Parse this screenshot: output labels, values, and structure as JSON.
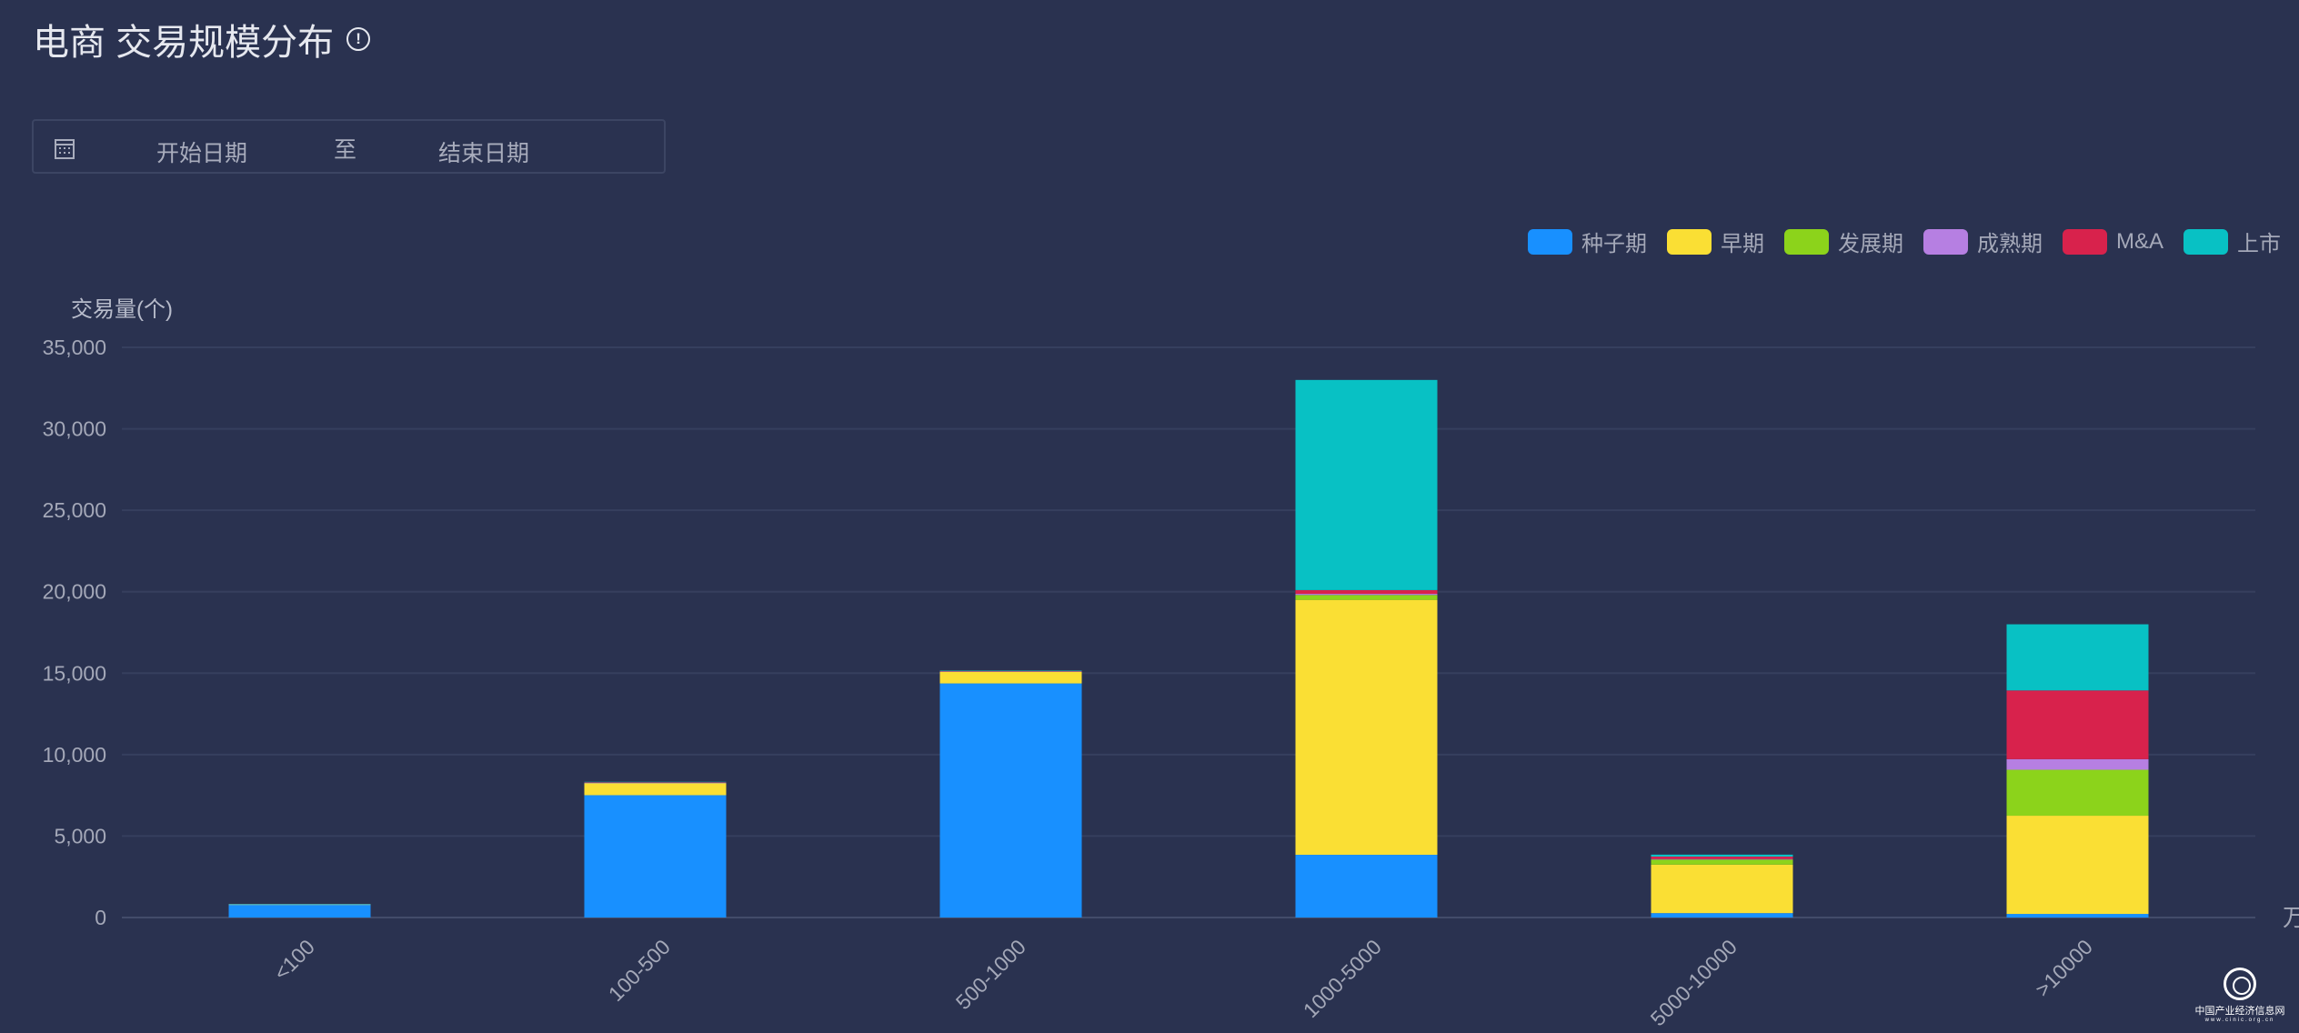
{
  "header": {
    "title": "电商 交易规模分布",
    "info_icon": "info-circle-icon"
  },
  "date_range": {
    "start_placeholder": "开始日期",
    "separator": "至",
    "end_placeholder": "结束日期",
    "icon": "calendar-icon"
  },
  "watermark": {
    "name": "中国产业经济信息网",
    "url": "www.cinic.org.cn"
  },
  "chart_data": {
    "type": "bar",
    "stacked": true,
    "title": "电商 交易规模分布",
    "ylabel": "交易量(个)",
    "xlabel": "万",
    "ylim": [
      0,
      35000
    ],
    "yticks": [
      0,
      5000,
      10000,
      15000,
      20000,
      25000,
      30000,
      35000
    ],
    "ytick_labels": [
      "0",
      "5,000",
      "10,000",
      "15,000",
      "20,000",
      "25,000",
      "30,000",
      "35,000"
    ],
    "grid": true,
    "legend_position": "top-right",
    "categories": [
      "<100",
      "100-500",
      "500-1000",
      "1000-5000",
      "5000-10000",
      ">10000"
    ],
    "series": [
      {
        "name": "种子期",
        "color": "#1890ff",
        "values": [
          790,
          7510,
          14370,
          3850,
          270,
          220
        ]
      },
      {
        "name": "早期",
        "color": "#fadf34",
        "values": [
          10,
          740,
          720,
          15650,
          2980,
          6030
        ]
      },
      {
        "name": "发展期",
        "color": "#8cd31b",
        "values": [
          15,
          10,
          10,
          300,
          310,
          2820
        ]
      },
      {
        "name": "成熟期",
        "color": "#b67fe2",
        "values": [
          5,
          10,
          10,
          70,
          30,
          650
        ]
      },
      {
        "name": "M&A",
        "color": "#d8224c",
        "values": [
          0,
          40,
          30,
          230,
          150,
          4220
        ]
      },
      {
        "name": "上市",
        "color": "#08c1c4",
        "values": [
          10,
          20,
          20,
          12900,
          120,
          4060
        ]
      }
    ]
  }
}
